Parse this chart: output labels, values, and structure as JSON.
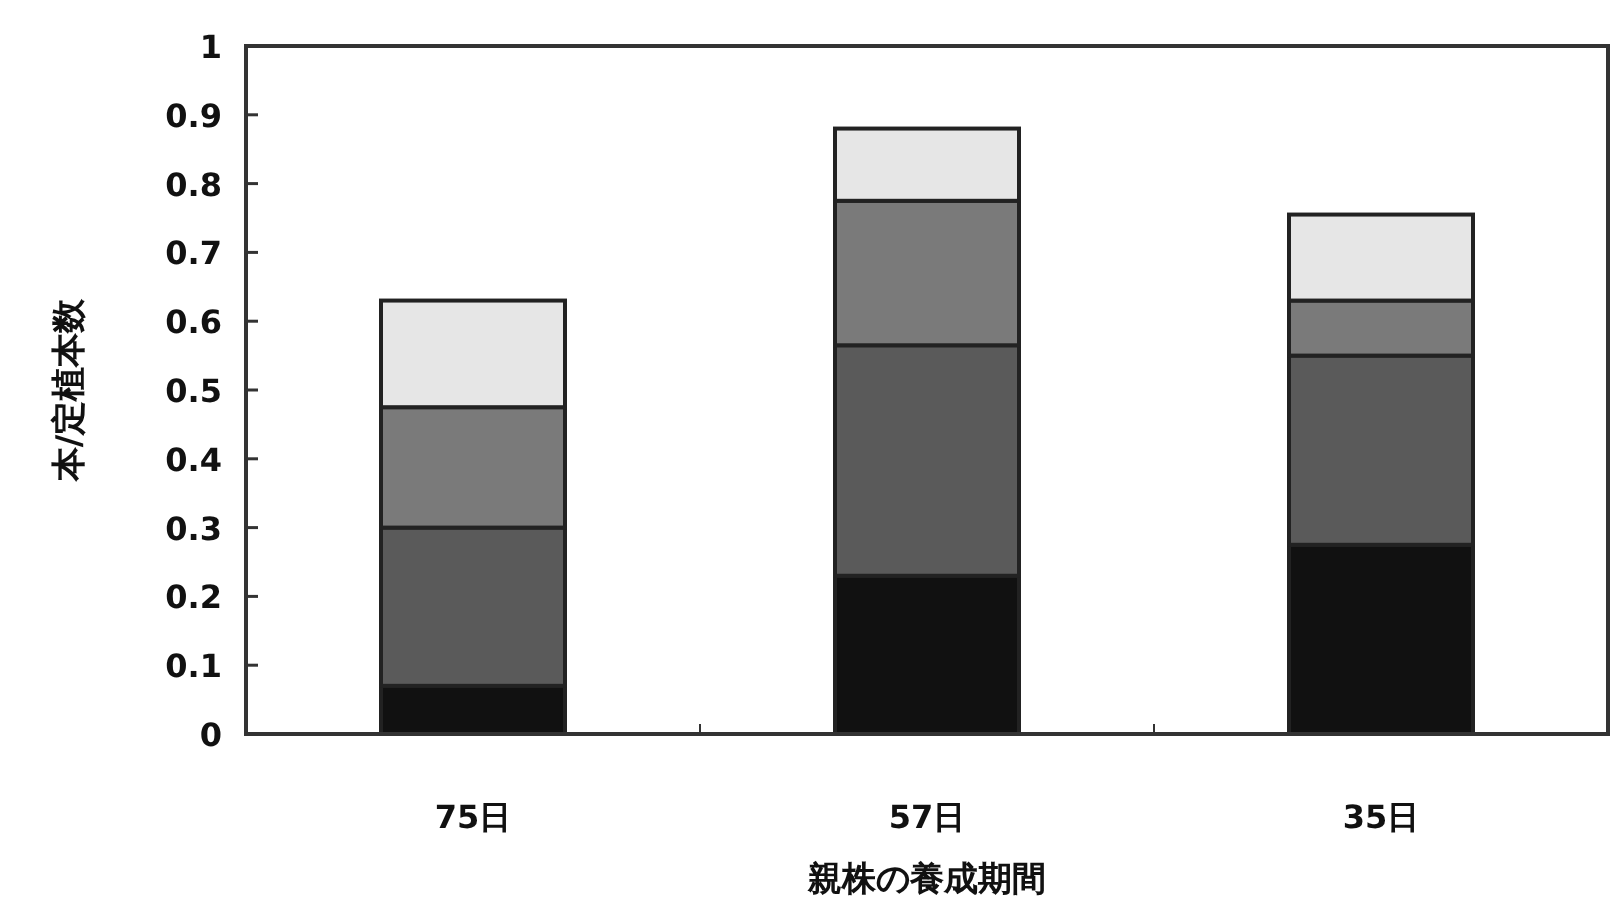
{
  "chart_data": {
    "type": "bar",
    "stacked": true,
    "xlabel": "親株の養成期間",
    "ylabel": "本/定植本数",
    "categories": [
      "75日",
      "57日",
      "35日"
    ],
    "series": [
      {
        "color": "#111111",
        "values": [
          0.07,
          0.23,
          0.275
        ]
      },
      {
        "color": "#5a5a5a",
        "values": [
          0.23,
          0.335,
          0.275
        ]
      },
      {
        "color": "#7a7a7a",
        "values": [
          0.175,
          0.21,
          0.08
        ]
      },
      {
        "color": "#e6e6e6",
        "values": [
          0.155,
          0.105,
          0.125
        ]
      }
    ],
    "ylim": [
      0,
      1
    ],
    "yticks": [
      0,
      0.1,
      0.2,
      0.3,
      0.4,
      0.5,
      0.6,
      0.7,
      0.8,
      0.9,
      1
    ],
    "grid": false
  }
}
